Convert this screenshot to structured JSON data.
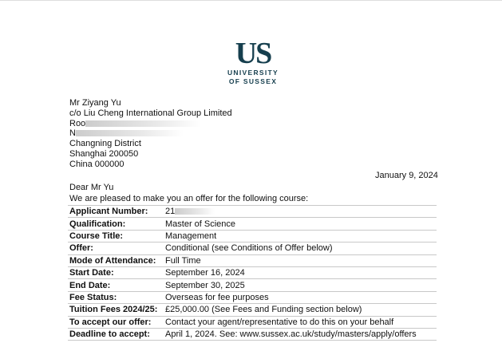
{
  "logo": {
    "mark": "US",
    "line1": "UNIVERSITY",
    "line2": "OF SUSSEX"
  },
  "address": {
    "name": "Mr Ziyang Yu",
    "line1": "c/o Liu Cheng International Group Limited",
    "line2_visible": "Roo",
    "line3_visible": "N",
    "line4": "Changning District",
    "line5": "Shanghai 200050",
    "line6": "China 000000"
  },
  "date": "January 9, 2024",
  "salutation": "Dear Mr Yu",
  "intro": "We are pleased to make you an offer for the following course:",
  "rows": [
    {
      "label": "Applicant Number:",
      "value": "21"
    },
    {
      "label": "Qualification:",
      "value": "Master of Science"
    },
    {
      "label": "Course Title:",
      "value": "Management"
    },
    {
      "label": "Offer:",
      "value": "Conditional (see Conditions of Offer below)"
    },
    {
      "label": "Mode of Attendance:",
      "value": "Full Time"
    },
    {
      "label": "Start Date:",
      "value": "September 16, 2024"
    },
    {
      "label": "End Date:",
      "value": "September 30, 2025"
    },
    {
      "label": "Fee Status:",
      "value": "Overseas for fee purposes"
    },
    {
      "label": "Tuition Fees 2024/25:",
      "value": "£25,000.00 (See Fees and Funding section below)"
    },
    {
      "label": "To accept our offer:",
      "value": "Contact your agent/representative to do this on your behalf"
    },
    {
      "label": "Deadline to accept:",
      "value": "April 1, 2024.  See: www.sussex.ac.uk/study/masters/apply/offers"
    }
  ]
}
